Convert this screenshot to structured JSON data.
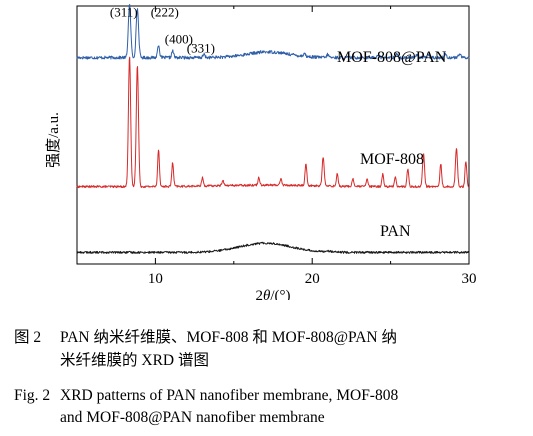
{
  "chart_data": {
    "type": "line",
    "title": "",
    "xlabel": "2θ/(°)",
    "ylabel": "强度/a.u.",
    "xlim": [
      5,
      30
    ],
    "xticks": [
      10,
      20,
      30
    ],
    "yticks": "none",
    "grid": false,
    "legend": "none; series labelled inline above each trace",
    "series": [
      {
        "name": "MOF-808@PAN",
        "color": "#2f5fa8",
        "baseline": 0.8,
        "noise": 0.006,
        "hump": {
          "center": 17.2,
          "width": 1.9,
          "height": 0.022
        },
        "peaks": [
          {
            "x": 8.35,
            "h": 0.205,
            "w": 0.11
          },
          {
            "x": 8.85,
            "h": 0.19,
            "w": 0.11
          },
          {
            "x": 10.2,
            "h": 0.05,
            "w": 0.09
          },
          {
            "x": 11.1,
            "h": 0.026,
            "w": 0.09
          },
          {
            "x": 13.1,
            "h": 0.012,
            "w": 0.09
          },
          {
            "x": 19.5,
            "h": 0.012,
            "w": 0.09
          },
          {
            "x": 21.0,
            "h": 0.012,
            "w": 0.09
          },
          {
            "x": 24.2,
            "h": 0.012,
            "w": 0.09
          },
          {
            "x": 25.4,
            "h": 0.012,
            "w": 0.09
          },
          {
            "x": 26.7,
            "h": 0.014,
            "w": 0.09
          },
          {
            "x": 27.4,
            "h": 0.012,
            "w": 0.09
          },
          {
            "x": 28.5,
            "h": 0.014,
            "w": 0.09
          },
          {
            "x": 29.4,
            "h": 0.015,
            "w": 0.09
          }
        ]
      },
      {
        "name": "MOF-808",
        "color": "#d62a2a",
        "baseline": 0.3,
        "noise": 0.004,
        "hump": {
          "center": 17.0,
          "width": 4.0,
          "height": 0.006
        },
        "peaks": [
          {
            "x": 8.35,
            "h": 0.505,
            "w": 0.1
          },
          {
            "x": 8.85,
            "h": 0.47,
            "w": 0.1
          },
          {
            "x": 10.2,
            "h": 0.145,
            "w": 0.08
          },
          {
            "x": 11.1,
            "h": 0.092,
            "w": 0.08
          },
          {
            "x": 13.0,
            "h": 0.032,
            "w": 0.08
          },
          {
            "x": 14.3,
            "h": 0.022,
            "w": 0.08
          },
          {
            "x": 16.6,
            "h": 0.03,
            "w": 0.08
          },
          {
            "x": 18.0,
            "h": 0.025,
            "w": 0.08
          },
          {
            "x": 19.6,
            "h": 0.088,
            "w": 0.08
          },
          {
            "x": 20.7,
            "h": 0.112,
            "w": 0.09
          },
          {
            "x": 21.6,
            "h": 0.05,
            "w": 0.08
          },
          {
            "x": 22.6,
            "h": 0.03,
            "w": 0.08
          },
          {
            "x": 23.5,
            "h": 0.028,
            "w": 0.08
          },
          {
            "x": 24.5,
            "h": 0.048,
            "w": 0.08
          },
          {
            "x": 25.3,
            "h": 0.038,
            "w": 0.08
          },
          {
            "x": 26.1,
            "h": 0.068,
            "w": 0.08
          },
          {
            "x": 27.1,
            "h": 0.128,
            "w": 0.09
          },
          {
            "x": 28.2,
            "h": 0.088,
            "w": 0.08
          },
          {
            "x": 29.2,
            "h": 0.15,
            "w": 0.09
          },
          {
            "x": 29.8,
            "h": 0.1,
            "w": 0.08
          }
        ]
      },
      {
        "name": "PAN",
        "color": "#1a1a1a",
        "baseline": 0.045,
        "noise": 0.004,
        "hump": {
          "center": 17.0,
          "width": 2.3,
          "height": 0.036
        },
        "peaks": [
          {
            "x": 21.0,
            "h": 0.004,
            "w": 0.3
          }
        ]
      }
    ],
    "annotations": [
      {
        "text": "(311)",
        "x": 7.1,
        "y": 0.96
      },
      {
        "text": "(222)",
        "x": 9.7,
        "y": 0.96
      },
      {
        "text": "(400)",
        "x": 10.6,
        "y": 0.855
      },
      {
        "text": "(331)",
        "x": 12.0,
        "y": 0.82
      }
    ]
  },
  "caption": {
    "cn_number": "图 2",
    "cn_line1": "PAN 纳米纤维膜、MOF-808 和 MOF-808@PAN 纳",
    "cn_line2": "米纤维膜的 XRD 谱图",
    "en_number": "Fig. 2",
    "en_line1": "XRD patterns of PAN nanofiber membrane, MOF-808",
    "en_line2": "and MOF-808@PAN nanofiber membrane"
  }
}
